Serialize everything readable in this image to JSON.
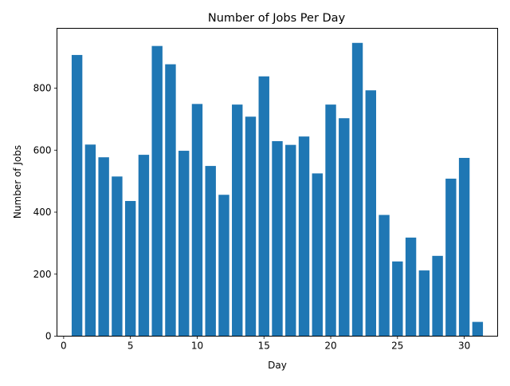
{
  "chart_data": {
    "type": "bar",
    "title": "Number of Jobs Per Day",
    "xlabel": "Day",
    "ylabel": "Number of Jobs",
    "x": [
      1,
      2,
      3,
      4,
      5,
      6,
      7,
      8,
      9,
      10,
      11,
      12,
      13,
      14,
      15,
      16,
      17,
      18,
      19,
      20,
      21,
      22,
      23,
      24,
      25,
      26,
      27,
      28,
      29,
      30,
      31
    ],
    "values": [
      907,
      618,
      577,
      515,
      436,
      585,
      936,
      877,
      598,
      749,
      549,
      456,
      747,
      708,
      838,
      629,
      617,
      644,
      525,
      747,
      703,
      946,
      793,
      391,
      241,
      318,
      212,
      259,
      508,
      575,
      46
    ],
    "xlim": [
      -0.5,
      32.5
    ],
    "ylim": [
      0,
      993
    ],
    "xticks": [
      0,
      5,
      10,
      15,
      20,
      25,
      30
    ],
    "yticks": [
      0,
      200,
      400,
      600,
      800
    ],
    "bar_color": "#1f77b4",
    "grid": false,
    "legend": "none"
  }
}
